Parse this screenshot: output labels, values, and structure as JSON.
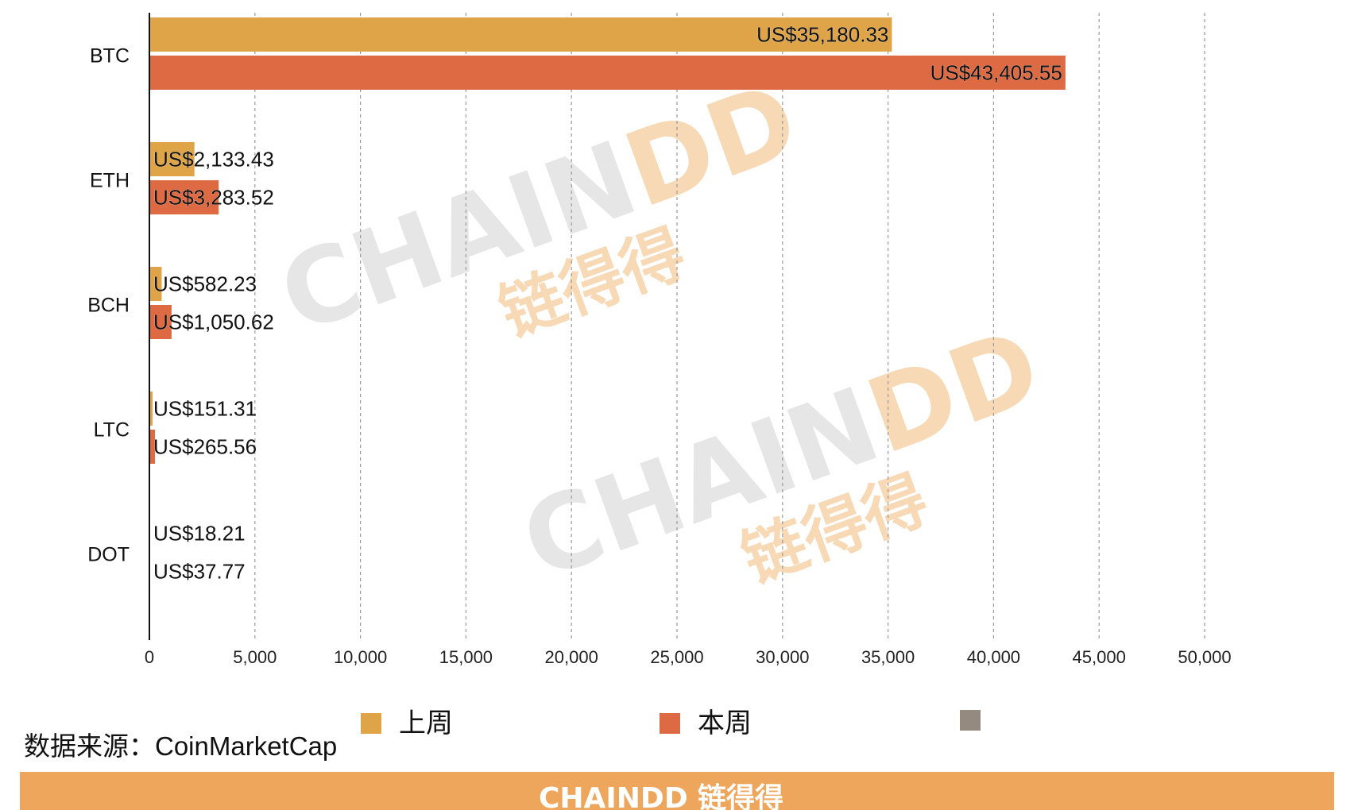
{
  "chart_data": {
    "type": "bar",
    "orientation": "horizontal",
    "categories": [
      "BTC",
      "ETH",
      "BCH",
      "LTC",
      "DOT"
    ],
    "series": [
      {
        "name": "上周",
        "color": "#dea447",
        "values": [
          35180.33,
          2133.43,
          582.23,
          151.31,
          18.21
        ],
        "labels": [
          "US$35,180.33",
          "US$2,133.43",
          "US$582.23",
          "US$151.31",
          "US$18.21"
        ]
      },
      {
        "name": "本周",
        "color": "#dd6a42",
        "values": [
          43405.55,
          3283.52,
          1050.62,
          265.56,
          37.77
        ],
        "labels": [
          "US$43,405.55",
          "US$3,283.52",
          "US$1,050.62",
          "US$265.56",
          "US$37.77"
        ]
      }
    ],
    "xlim": [
      0,
      50000
    ],
    "xticks": [
      0,
      5000,
      10000,
      15000,
      20000,
      25000,
      30000,
      35000,
      40000,
      45000,
      50000
    ],
    "xtick_labels": [
      "0",
      "5,000",
      "10,000",
      "15,000",
      "20,000",
      "25,000",
      "30,000",
      "35,000",
      "40,000",
      "45,000",
      "50,000"
    ],
    "grid": "vertical dashed",
    "legend": {
      "position": "bottom",
      "items": [
        {
          "label": "上周",
          "color": "#dea447"
        },
        {
          "label": "本周",
          "color": "#dd6a42"
        },
        {
          "label": "",
          "color": "#948a80"
        }
      ]
    },
    "title": "",
    "xlabel": "",
    "ylabel": ""
  },
  "source": "数据来源：CoinMarketCap",
  "watermark": {
    "latin": "CHAINDD",
    "cjk": "链得得",
    "colors": {
      "gray": "#e6e6e6",
      "orange": "#f8d9b6"
    }
  },
  "footer": {
    "brand": "CHAINDD",
    "brand_cjk": "链得得",
    "background": "#eda65c"
  }
}
